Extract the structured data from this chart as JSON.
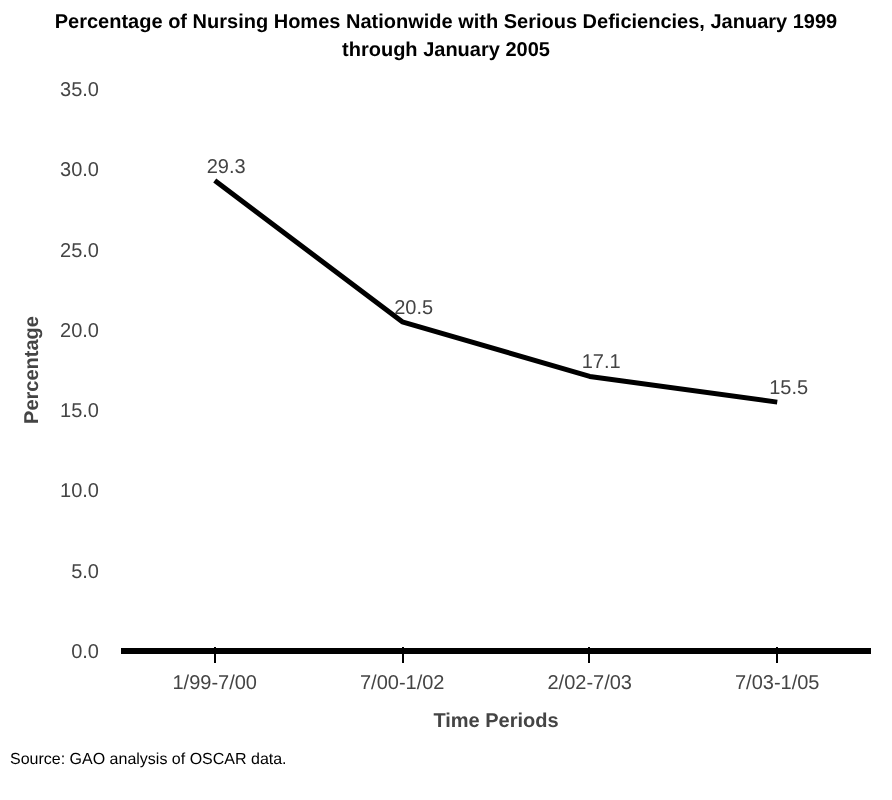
{
  "chart_data": {
    "type": "line",
    "title": "Percentage of Nursing Homes Nationwide with Serious Deficiencies, January 1999 through January 2005",
    "categories": [
      "1/99-7/00",
      "7/00-1/02",
      "2/02-7/03",
      "7/03-1/05"
    ],
    "values": [
      29.3,
      20.5,
      17.1,
      15.5
    ],
    "color": "#000000",
    "xlabel": "Time Periods",
    "ylabel": "Percentage",
    "ylim": [
      0,
      35
    ],
    "yticks": [
      {
        "value": 0,
        "label": "0.0"
      },
      {
        "value": 5,
        "label": "5.0"
      },
      {
        "value": 10,
        "label": "10.0"
      },
      {
        "value": 15,
        "label": "15.0"
      },
      {
        "value": 20,
        "label": "20.0"
      },
      {
        "value": 25,
        "label": "25.0"
      },
      {
        "value": 30,
        "label": "30.0"
      },
      {
        "value": 35,
        "label": "35.0"
      }
    ],
    "data_labels": true,
    "grid": false,
    "marker": "none",
    "line_style": "solid",
    "annotations": [
      "Source: GAO analysis of OSCAR data."
    ]
  }
}
